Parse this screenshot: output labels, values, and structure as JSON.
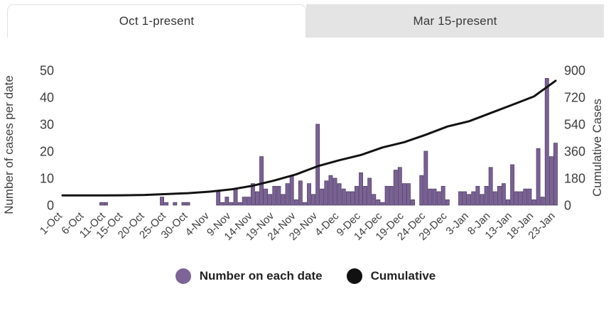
{
  "tabs": [
    {
      "label": "Oct 1-present",
      "active": true
    },
    {
      "label": "Mar 15-present",
      "active": false
    }
  ],
  "legend": [
    {
      "label": "Number on each date",
      "color": "#7d6597",
      "type": "bar"
    },
    {
      "label": "Cumulative",
      "color": "#111111",
      "type": "line"
    }
  ],
  "colors": {
    "bar_fill": "#7a6294",
    "bar_border": "#53406b",
    "line": "#121212",
    "axis_text": "#3d3d3d",
    "tab_inactive_bg": "#e4e4e4"
  },
  "chart_data": {
    "type": "bar",
    "title": "",
    "xlabel": "",
    "left_axis": {
      "label": "Number of cases per date",
      "ticks": [
        0,
        10,
        20,
        30,
        40,
        50
      ],
      "range": [
        0,
        50
      ]
    },
    "right_axis": {
      "label": "Cumulative Cases",
      "ticks": [
        0,
        180,
        360,
        540,
        720,
        900
      ],
      "range": [
        0,
        900
      ]
    },
    "x_tick_labels": [
      "1-Oct",
      "6-Oct",
      "11-Oct",
      "15-Oct",
      "20-Oct",
      "25-Oct",
      "30-Oct",
      "4-Nov",
      "9-Nov",
      "14-Nov",
      "19-Nov",
      "24-Nov",
      "29-Nov",
      "4-Dec",
      "9-Dec",
      "14-Dec",
      "19-Dec",
      "24-Dec",
      "29-Dec",
      "3-Jan",
      "8-Jan",
      "13-Jan",
      "18-Jan",
      "23-Jan"
    ],
    "x_tick_slots": [
      0,
      5,
      10,
      14,
      19,
      24,
      29,
      34,
      39,
      44,
      49,
      54,
      59,
      64,
      69,
      74,
      79,
      84,
      89,
      94,
      99,
      104,
      109,
      114
    ],
    "n_bars": 115,
    "series": [
      {
        "name": "Number on each date",
        "axis": "left",
        "values": [
          0,
          0,
          0,
          0,
          0,
          0,
          0,
          0,
          0,
          1,
          1,
          0,
          0,
          0,
          0,
          0,
          0,
          0,
          0,
          0,
          0,
          0,
          0,
          3,
          1,
          0,
          1,
          0,
          1,
          1,
          0,
          0,
          0,
          0,
          0,
          0,
          5,
          1,
          3,
          1,
          6,
          1,
          3,
          3,
          8,
          5,
          18,
          6,
          4,
          7,
          7,
          4,
          8,
          11,
          2,
          9,
          1,
          8,
          4,
          30,
          6,
          9,
          11,
          10,
          8,
          6,
          5,
          5,
          7,
          12,
          7,
          10,
          4,
          2,
          1,
          7,
          7,
          13,
          14,
          8,
          8,
          2,
          0,
          11,
          20,
          6,
          6,
          5,
          7,
          2,
          0,
          0,
          5,
          5,
          4,
          5,
          7,
          4,
          7,
          14,
          5,
          7,
          8,
          2,
          15,
          5,
          5,
          6,
          6,
          2,
          21,
          3,
          47,
          18,
          23
        ]
      },
      {
        "name": "Cumulative",
        "axis": "right",
        "x_slots": [
          0,
          5,
          10,
          14,
          19,
          24,
          29,
          34,
          39,
          44,
          49,
          54,
          59,
          64,
          69,
          74,
          79,
          84,
          89,
          94,
          99,
          104,
          109,
          114
        ],
        "values": [
          65,
          65,
          65,
          66,
          68,
          74,
          80,
          90,
          105,
          130,
          165,
          205,
          260,
          300,
          335,
          385,
          420,
          470,
          525,
          560,
          615,
          670,
          725,
          830
        ]
      }
    ],
    "legend_position": "bottom",
    "grid": false
  }
}
